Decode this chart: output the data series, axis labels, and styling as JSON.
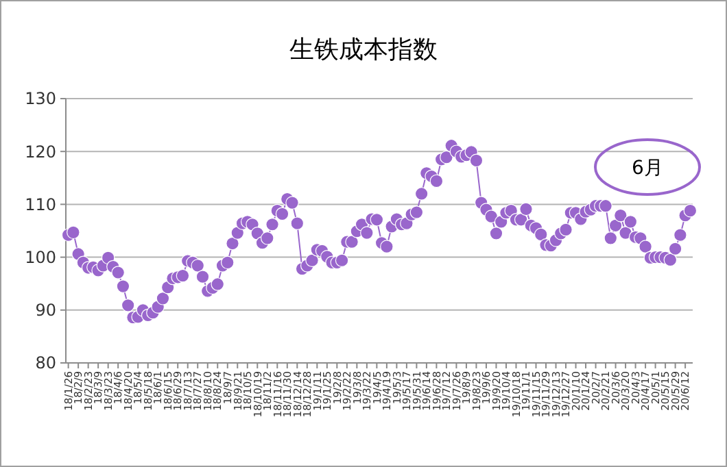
{
  "chart_data": {
    "type": "line",
    "title": "生铁成本指数",
    "categories": [
      "18/1/26",
      null,
      "18/2/9",
      null,
      "18/2/23",
      null,
      "18/3/9",
      null,
      "18/3/23",
      null,
      "18/4/6",
      null,
      "18/4/20",
      null,
      "18/5/4",
      null,
      "18/5/18",
      null,
      "18/6/1",
      null,
      "18/6/15",
      null,
      "18/6/29",
      null,
      "18/7/13",
      null,
      "18/7/27",
      null,
      "18/8/10",
      null,
      "18/8/24",
      null,
      "18/9/7",
      null,
      "18/9/21",
      null,
      "18/10/5",
      null,
      "18/10/19",
      null,
      "18/11/2",
      null,
      "18/11/16",
      null,
      "18/11/30",
      null,
      "18/12/14",
      null,
      "18/12/28",
      null,
      "19/1/11",
      null,
      "19/1/25",
      null,
      "19/2/8",
      null,
      "19/2/22",
      null,
      "19/3/8",
      null,
      "19/3/22",
      null,
      "19/4/5",
      null,
      "19/4/19",
      null,
      "19/5/3",
      null,
      "19/5/17",
      null,
      "19/5/31",
      null,
      "19/6/14",
      null,
      "19/6/28",
      null,
      "19/7/12",
      null,
      "19/7/26",
      null,
      "19/8/9",
      null,
      "19/8/23",
      null,
      "19/9/6",
      null,
      "19/9/20",
      null,
      "19/10/4",
      null,
      "19/10/18",
      null,
      "19/11/1",
      null,
      "19/11/15",
      null,
      "19/11/29",
      null,
      "19/12/13",
      null,
      "19/12/27",
      null,
      "20/1/10",
      null,
      "20/1/24",
      null,
      "20/2/7",
      null,
      "20/2/21",
      null,
      "20/3/6",
      null,
      "20/3/20",
      null,
      "20/4/3",
      null,
      "20/4/17",
      null,
      "20/5/1",
      null,
      "20/5/15",
      null,
      "20/5/29",
      null,
      "20/6/12",
      null
    ],
    "series": [
      {
        "color": "#9966cc",
        "values": [
          104.2,
          104.7,
          100.6,
          99.0,
          98.0,
          98.1,
          97.5,
          98.4,
          99.9,
          98.2,
          97.1,
          94.5,
          90.9,
          88.6,
          88.7,
          90.0,
          89.0,
          89.5,
          90.6,
          92.2,
          94.3,
          96.0,
          96.2,
          96.5,
          99.3,
          99.0,
          98.4,
          96.3,
          93.6,
          94.2,
          94.9,
          98.4,
          99.0,
          102.6,
          104.6,
          106.4,
          106.7,
          106.2,
          104.5,
          102.7,
          103.6,
          106.2,
          108.8,
          108.2,
          111.0,
          110.3,
          106.4,
          97.8,
          98.4,
          99.4,
          101.4,
          101.2,
          100.1,
          99.0,
          99.0,
          99.4,
          102.9,
          102.9,
          104.9,
          106.2,
          104.6,
          107.2,
          107.1,
          102.7,
          102.0,
          105.8,
          107.2,
          106.2,
          106.4,
          108.1,
          108.5,
          112.0,
          115.9,
          115.3,
          114.4,
          118.5,
          118.9,
          121.1,
          120.0,
          119.0,
          119.3,
          119.9,
          118.3,
          110.3,
          109.0,
          107.7,
          104.5,
          106.7,
          108.4,
          108.8,
          107.1,
          107.1,
          109.1,
          106.0,
          105.5,
          104.3,
          102.3,
          102.2,
          103.2,
          104.5,
          105.2,
          108.4,
          108.4,
          107.2,
          108.6,
          109.0,
          109.7,
          109.7,
          109.7,
          103.6,
          106.0,
          107.9,
          104.6,
          106.7,
          103.8,
          103.6,
          102.0,
          99.9,
          100.0,
          100.0,
          99.9,
          99.5,
          101.6,
          104.2,
          107.9,
          108.8
        ]
      }
    ],
    "ylim": [
      80,
      130
    ],
    "yticks": [
      80,
      90,
      100,
      110,
      120,
      130
    ],
    "grid": "y",
    "marker": "circle",
    "line_style": "solid",
    "annotations": [
      "6月"
    ]
  }
}
